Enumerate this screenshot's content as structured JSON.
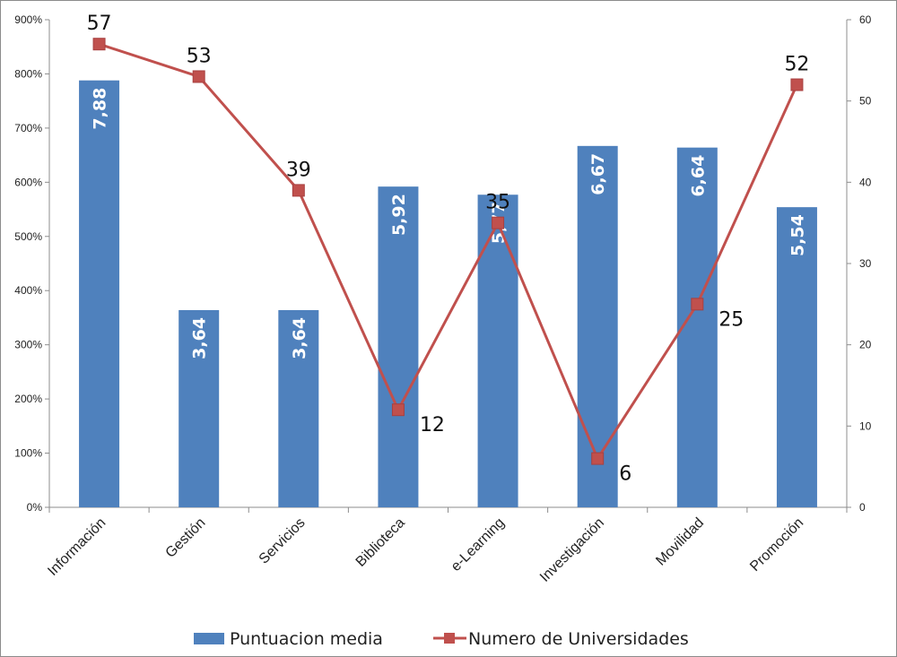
{
  "chart_data": {
    "type": "bar+line",
    "categories": [
      "Información",
      "Gestión",
      "Servicios",
      "Biblioteca",
      "e-Learning",
      "Investigación",
      "Movilidad",
      "Promoción"
    ],
    "series": [
      {
        "name": "Puntuacion media",
        "type": "bar",
        "axis": "left",
        "values": [
          7.88,
          3.64,
          3.64,
          5.92,
          5.77,
          6.67,
          6.64,
          5.54
        ],
        "labels": [
          "7,88",
          "3,64",
          "3,64",
          "5,92",
          "5,77",
          "6,67",
          "6,64",
          "5,54"
        ],
        "color": "#4F81BD"
      },
      {
        "name": "Numero de Universidades",
        "type": "line",
        "axis": "right",
        "values": [
          57,
          53,
          39,
          12,
          35,
          6,
          25,
          52
        ],
        "labels": [
          "57",
          "53",
          "39",
          "12",
          "35",
          "6",
          "25",
          "52"
        ],
        "color": "#C0504D"
      }
    ],
    "left_axis": {
      "ticks": [
        "0%",
        "100%",
        "200%",
        "300%",
        "400%",
        "500%",
        "600%",
        "700%",
        "800%",
        "900%"
      ],
      "ylim": [
        0,
        9
      ]
    },
    "right_axis": {
      "ticks": [
        "0",
        "10",
        "20",
        "30",
        "40",
        "50",
        "60"
      ],
      "ylim": [
        0,
        60
      ]
    },
    "legend_position": "bottom",
    "grid": false
  }
}
